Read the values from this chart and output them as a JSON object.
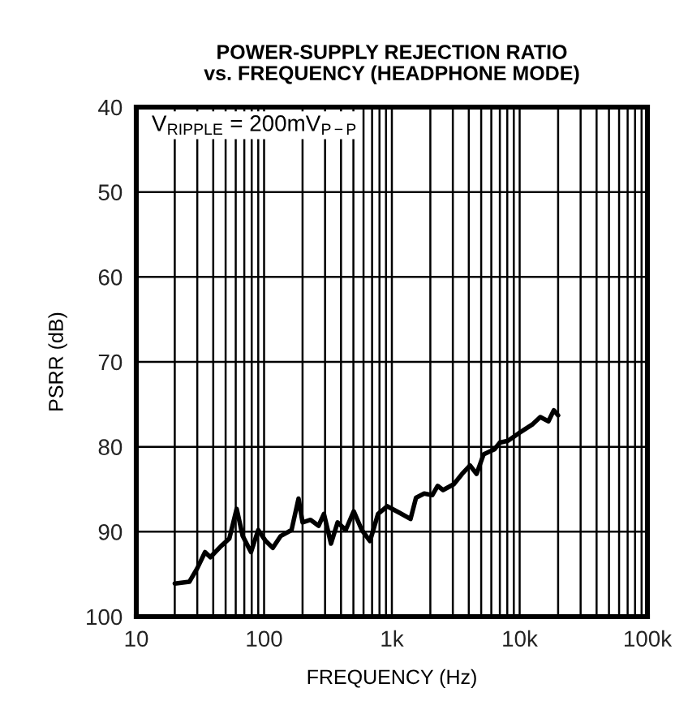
{
  "chart_data": {
    "type": "line",
    "title": "POWER-SUPPLY REJECTION RATIO\nvs. FREQUENCY (HEADPHONE MODE)",
    "xlabel": "FREQUENCY (Hz)",
    "ylabel": "PSRR (dB)",
    "annotations": [
      "V$_{RIPPLE}$ = 200mV$_{P−P}$"
    ],
    "log": "x",
    "xlim": [
      10,
      100000
    ],
    "xticks": [
      10,
      {
        "value": 20,
        "label": null
      },
      {
        "value": 30,
        "label": null
      },
      {
        "value": 40,
        "label": null
      },
      {
        "value": 50,
        "label": null
      },
      {
        "value": 60,
        "label": null
      },
      {
        "value": 70,
        "label": null
      },
      {
        "value": 80,
        "label": null
      },
      {
        "value": 90,
        "label": null
      },
      100,
      {
        "value": 200,
        "label": null
      },
      {
        "value": 300,
        "label": null
      },
      {
        "value": 400,
        "label": null
      },
      {
        "value": 500,
        "label": null
      },
      {
        "value": 600,
        "label": null
      },
      {
        "value": 700,
        "label": null
      },
      {
        "value": 800,
        "label": null
      },
      {
        "value": 900,
        "label": null
      },
      {
        "value": 1000,
        "label": "1k"
      },
      {
        "value": 2000,
        "label": null
      },
      {
        "value": 3000,
        "label": null
      },
      {
        "value": 4000,
        "label": null
      },
      {
        "value": 5000,
        "label": null
      },
      {
        "value": 6000,
        "label": null
      },
      {
        "value": 7000,
        "label": null
      },
      {
        "value": 8000,
        "label": null
      },
      {
        "value": 9000,
        "label": null
      },
      {
        "value": 10000,
        "label": "10k"
      },
      {
        "value": 20000,
        "label": null
      },
      {
        "value": 30000,
        "label": null
      },
      {
        "value": 40000,
        "label": null
      },
      {
        "value": 50000,
        "label": null
      },
      {
        "value": 60000,
        "label": null
      },
      {
        "value": 70000,
        "label": null
      },
      {
        "value": 80000,
        "label": null
      },
      {
        "value": 90000,
        "label": null
      },
      {
        "value": 100000,
        "label": "100k"
      }
    ],
    "ylim": [
      100,
      40
    ],
    "yticks": [
      40,
      50,
      60,
      70,
      80,
      90,
      100
    ],
    "grid": true,
    "line_style": "solid",
    "series": [
      {
        "color": "#000000",
        "x": [
          20,
          26,
          30,
          34.5,
          38,
          46,
          53.5,
          61,
          68,
          79,
          90,
          103,
          117,
          135,
          164,
          186,
          200,
          231,
          267,
          294,
          334,
          376,
          435,
          503,
          582,
          674,
          780,
          921,
          1155,
          1400,
          1545,
          1790,
          2070,
          2280,
          2515,
          3055,
          3540,
          4090,
          4600,
          5220,
          6350,
          7000,
          8100,
          9850,
          12500,
          14500,
          16800,
          18500,
          20000
        ],
        "values": [
          96.1,
          95.9,
          94.3,
          92.4,
          93.0,
          91.7,
          90.8,
          87.3,
          90.5,
          92.4,
          89.8,
          91.1,
          91.9,
          90.5,
          89.8,
          86.1,
          88.9,
          88.6,
          89.3,
          87.9,
          91.4,
          88.9,
          89.8,
          87.6,
          89.8,
          91.1,
          87.9,
          87.0,
          87.8,
          88.5,
          86.0,
          85.5,
          85.7,
          84.6,
          85.1,
          84.4,
          83.2,
          82.2,
          83.2,
          80.9,
          80.3,
          79.5,
          79.3,
          78.4,
          77.4,
          76.5,
          77.0,
          75.7,
          76.3
        ]
      }
    ]
  }
}
